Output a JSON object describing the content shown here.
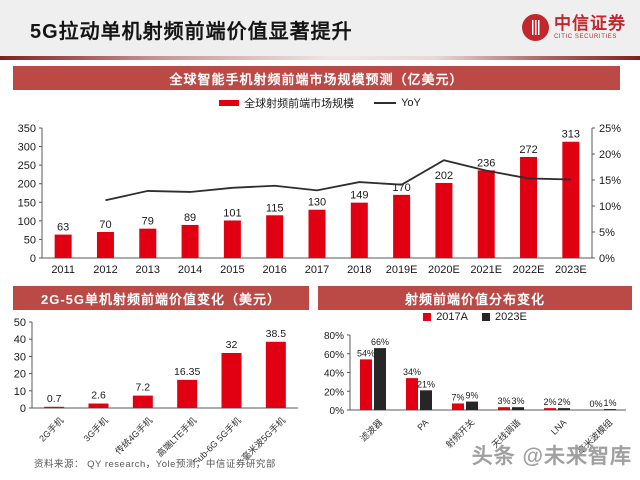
{
  "header": {
    "title": "5G拉动单机射频前端价值显著提升",
    "logo_cn": "中信证券",
    "logo_en": "CITIC SECURITIES"
  },
  "footer": {
    "source": "资料来源：  QY research，Yole预测，中信证券研究部",
    "watermark": "头条 @未来智库"
  },
  "colors": {
    "accent_red": "#e00012",
    "banner_red": "#bb4a47",
    "dark_bar": "#262626",
    "line": "#2e2e2e"
  },
  "chart_data": [
    {
      "type": "bar-line",
      "title": "全球智能手机射频前端市场规模预测（亿美元）",
      "legend": [
        "全球射频前端市场规模",
        "YoY"
      ],
      "categories": [
        "2011",
        "2012",
        "2013",
        "2014",
        "2015",
        "2016",
        "2017",
        "2018",
        "2019E",
        "2020E",
        "2021E",
        "2022E",
        "2023E"
      ],
      "bars": {
        "name": "全球射频前端市场规模",
        "color": "#e00012",
        "values": [
          63,
          70,
          79,
          89,
          101,
          115,
          130,
          149,
          170,
          202,
          236,
          272,
          313
        ]
      },
      "line": {
        "name": "YoY",
        "color": "#2e2e2e",
        "values": [
          null,
          11.1,
          12.9,
          12.7,
          13.5,
          13.9,
          13.0,
          14.6,
          14.1,
          18.8,
          16.8,
          15.3,
          15.1
        ]
      },
      "y_left": {
        "max": 350,
        "ticks": [
          0,
          50,
          100,
          150,
          200,
          250,
          300,
          350
        ]
      },
      "y_right": {
        "max": 25,
        "ticks": [
          0,
          5,
          10,
          15,
          20,
          25
        ],
        "suffix": "%"
      }
    },
    {
      "type": "bar",
      "title": "2G-5G单机射频前端价值变化（美元）",
      "categories": [
        "2G手机",
        "3G手机",
        "传统4G手机",
        "高端LTE手机",
        "Sub-6G 5G手机",
        "毫米波5G手机"
      ],
      "values": [
        0.7,
        2.6,
        7.2,
        16.35,
        32,
        38.5
      ],
      "bar_color": "#e00012",
      "y": {
        "max": 50,
        "ticks": [
          0,
          10,
          20,
          30,
          40,
          50
        ]
      }
    },
    {
      "type": "grouped-bar",
      "title": "射频前端价值分布变化",
      "legend": [
        "2017A",
        "2023E"
      ],
      "categories": [
        "滤波器",
        "PA",
        "射频开关",
        "天线调谐",
        "LNA",
        "毫米波模组"
      ],
      "series": [
        {
          "name": "2017A",
          "color": "#e00012",
          "values": [
            54,
            34,
            7,
            3,
            2,
            0
          ]
        },
        {
          "name": "2023E",
          "color": "#262626",
          "values": [
            66,
            21,
            9,
            3,
            2,
            1
          ]
        }
      ],
      "y": {
        "max": 80,
        "ticks": [
          0,
          20,
          40,
          60,
          80
        ],
        "suffix": "%"
      }
    }
  ]
}
